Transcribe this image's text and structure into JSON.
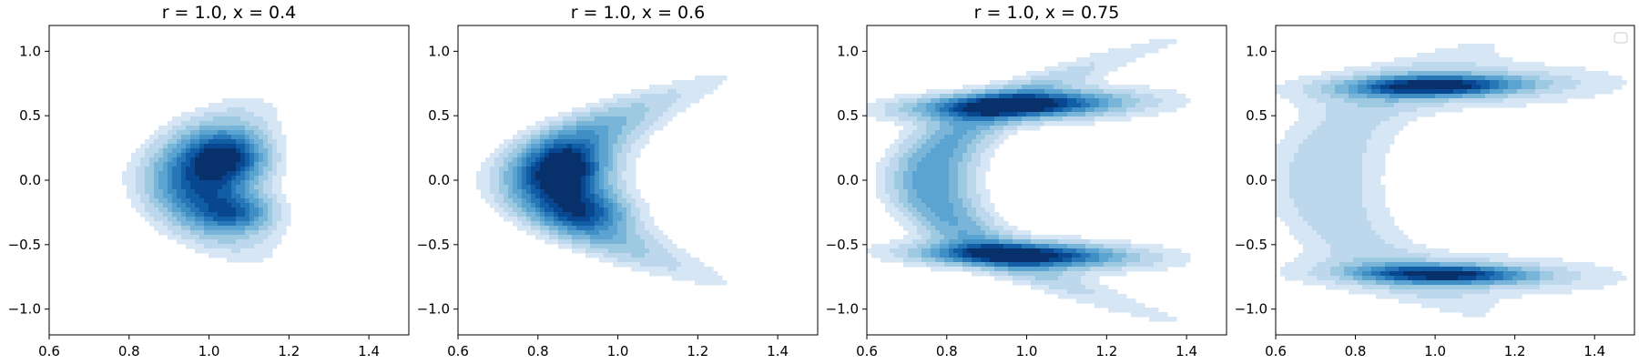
{
  "chart_data": [
    {
      "type": "contour",
      "title": "r = 1.0, x = 0.4",
      "xlim": [
        0.6,
        1.5
      ],
      "ylim": [
        -1.2,
        1.2
      ],
      "xticks": [
        0.6,
        0.8,
        1.0,
        1.2,
        1.4
      ],
      "yticks": [
        1.0,
        0.5,
        0.0,
        -0.5,
        -1.0
      ],
      "xtick_labels": [
        "0.6",
        "0.8",
        "1.0",
        "1.2",
        "1.4"
      ],
      "ytick_labels": [
        "1.0",
        "0.5",
        "0.0",
        "−0.5",
        "−1.0"
      ],
      "grid": false,
      "legend": false,
      "colormap": "Blues",
      "density_shape": {
        "cx": 1.02,
        "cy": 0.0,
        "rx": 0.2,
        "ry": 0.36,
        "bend": 0.28,
        "peaks": [
          [
            1.05,
            0.18
          ],
          [
            1.07,
            -0.25
          ]
        ]
      }
    },
    {
      "type": "contour",
      "title": "r = 1.0, x = 0.6",
      "xlim": [
        0.6,
        1.5
      ],
      "ylim": [
        -1.2,
        1.2
      ],
      "xticks": [
        0.6,
        0.8,
        1.0,
        1.2,
        1.4
      ],
      "yticks": [
        1.0,
        0.5,
        0.0,
        -0.5,
        -1.0
      ],
      "xtick_labels": [
        "0.6",
        "0.8",
        "1.0",
        "1.2",
        "1.4"
      ],
      "ytick_labels": [
        "1.0",
        "0.5",
        "0.0",
        "−0.5",
        "−1.0"
      ],
      "grid": false,
      "legend": false,
      "colormap": "Blues",
      "density_shape": {
        "cx": 0.8,
        "cy": 0.0,
        "rx": 0.22,
        "ry": 0.5,
        "bend": 0.6,
        "peaks": [
          [
            0.87,
            0.08
          ],
          [
            0.9,
            -0.22
          ]
        ]
      }
    },
    {
      "type": "contour",
      "title": "r = 1.0, x = 0.75",
      "xlim": [
        0.6,
        1.5
      ],
      "ylim": [
        -1.2,
        1.2
      ],
      "xticks": [
        0.6,
        0.8,
        1.0,
        1.2,
        1.4
      ],
      "yticks": [
        1.0,
        0.5,
        0.0,
        -0.5,
        -1.0
      ],
      "xtick_labels": [
        "0.6",
        "0.8",
        "1.0",
        "1.2",
        "1.4"
      ],
      "ytick_labels": [
        "1.0",
        "0.5",
        "0.0",
        "−0.5",
        "−1.0"
      ],
      "grid": false,
      "legend": false,
      "colormap": "Blues",
      "density_shape": {
        "lobes": [
          [
            0.96,
            0.58
          ],
          [
            0.97,
            -0.58
          ]
        ],
        "spine_x": 0.74
      }
    },
    {
      "type": "contour",
      "title": "",
      "xlim": [
        0.6,
        1.5
      ],
      "ylim": [
        -1.2,
        1.2
      ],
      "xticks": [
        0.6,
        0.8,
        1.0,
        1.2,
        1.4
      ],
      "yticks": [
        1.0,
        0.5,
        0.0,
        -0.5,
        -1.0
      ],
      "xtick_labels": [
        "0.6",
        "0.8",
        "1.0",
        "1.2",
        "1.4"
      ],
      "ytick_labels": [
        "1.0",
        "0.5",
        "0.0",
        "−0.5",
        "−1.0"
      ],
      "grid": false,
      "legend": true,
      "legend_placement": "top-right",
      "colormap": "Blues",
      "density_shape": {
        "lobes": [
          [
            1.0,
            0.73
          ],
          [
            1.0,
            -0.73
          ]
        ],
        "spine_x": 0.7
      }
    }
  ]
}
